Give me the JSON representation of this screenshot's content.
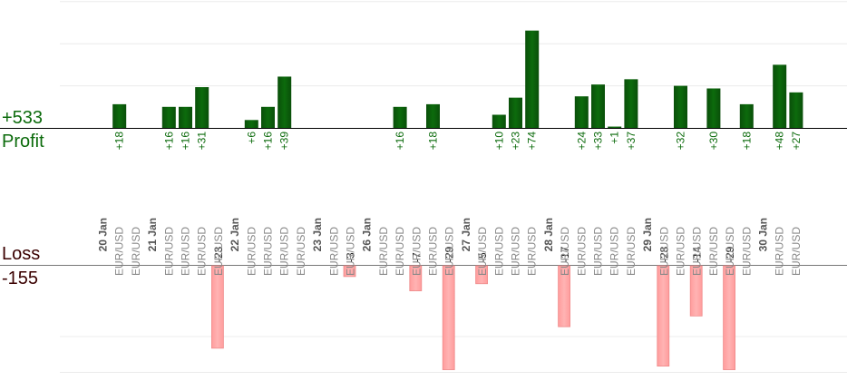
{
  "chart_data": {
    "type": "bar",
    "profit": {
      "label": "Profit",
      "total": "+533",
      "color": "#0c6b0c"
    },
    "loss": {
      "label": "Loss",
      "total": "-155",
      "color": "#ffb3b3"
    },
    "instrument": "EUR/USD",
    "days": [
      {
        "date": "20 Jan",
        "trades": [
          18,
          null
        ]
      },
      {
        "date": "21 Jan",
        "trades": [
          16,
          16,
          31,
          -23
        ]
      },
      {
        "date": "22 Jan",
        "trades": [
          6,
          16,
          39,
          null
        ]
      },
      {
        "date": "23 Jan",
        "trades": [
          null,
          -3
        ]
      },
      {
        "date": "26 Jan",
        "trades": [
          null,
          16,
          -7,
          18,
          -29
        ]
      },
      {
        "date": "27 Jan",
        "trades": [
          -5,
          10,
          23,
          74
        ]
      },
      {
        "date": "28 Jan",
        "trades": [
          -17,
          24,
          33,
          1,
          37
        ]
      },
      {
        "date": "29 Jan",
        "trades": [
          -28,
          32,
          -14,
          30,
          -29,
          18
        ]
      },
      {
        "date": "30 Jan",
        "trades": [
          48,
          27
        ]
      }
    ]
  }
}
